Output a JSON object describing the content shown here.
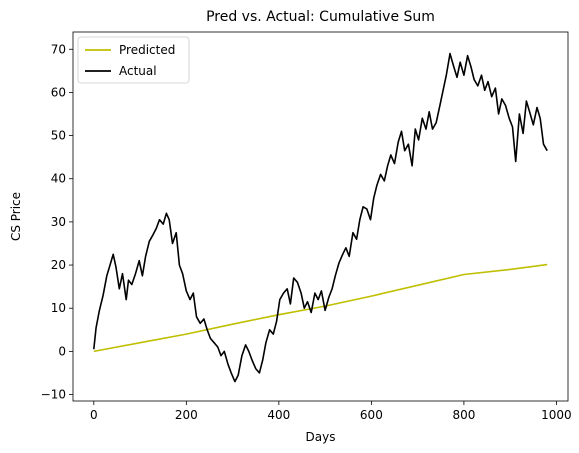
{
  "chart_data": {
    "type": "line",
    "title": "Pred vs. Actual: Cumulative Sum",
    "xlabel": "Days",
    "ylabel": "CS Price",
    "xlim": [
      -45,
      1025
    ],
    "ylim": [
      -11.5,
      74
    ],
    "xticks": [
      0,
      200,
      400,
      600,
      800,
      1000
    ],
    "yticks": [
      -10,
      0,
      10,
      20,
      30,
      40,
      50,
      60,
      70
    ],
    "grid": false,
    "legend_position": "top-left",
    "series": [
      {
        "name": "Predicted",
        "color": "#bfbf00",
        "x": [
          0,
          100,
          200,
          300,
          400,
          500,
          600,
          700,
          800,
          900,
          980
        ],
        "y": [
          0,
          2.0,
          4.0,
          6.3,
          8.5,
          10.5,
          12.8,
          15.3,
          17.8,
          19.0,
          20.1
        ]
      },
      {
        "name": "Actual",
        "color": "#000000",
        "x": [
          0,
          5,
          12,
          20,
          28,
          35,
          42,
          48,
          55,
          62,
          70,
          75,
          82,
          90,
          98,
          105,
          112,
          120,
          128,
          135,
          142,
          150,
          157,
          163,
          170,
          178,
          185,
          192,
          200,
          208,
          215,
          222,
          230,
          238,
          245,
          252,
          260,
          268,
          275,
          282,
          290,
          297,
          305,
          312,
          320,
          328,
          335,
          342,
          350,
          358,
          365,
          372,
          380,
          388,
          395,
          402,
          410,
          418,
          425,
          432,
          440,
          448,
          455,
          462,
          470,
          478,
          485,
          492,
          500,
          508,
          515,
          522,
          530,
          538,
          545,
          552,
          560,
          568,
          575,
          582,
          590,
          598,
          605,
          612,
          620,
          628,
          635,
          642,
          650,
          658,
          665,
          672,
          680,
          688,
          695,
          702,
          710,
          718,
          725,
          732,
          740,
          748,
          755,
          762,
          770,
          778,
          785,
          792,
          800,
          808,
          815,
          822,
          830,
          838,
          845,
          852,
          860,
          868,
          875,
          882,
          890,
          898,
          905,
          912,
          920,
          928,
          935,
          942,
          950,
          958,
          965,
          972,
          980
        ],
        "y": [
          0.5,
          5.5,
          9.5,
          13.0,
          17.5,
          20.0,
          22.5,
          19.5,
          14.5,
          18.0,
          12.0,
          16.5,
          15.5,
          18.0,
          21.0,
          17.5,
          22.0,
          25.5,
          27.0,
          28.5,
          30.5,
          29.5,
          32.0,
          30.5,
          25.0,
          27.5,
          20.0,
          18.0,
          14.0,
          12.0,
          13.5,
          8.0,
          6.5,
          7.5,
          5.0,
          3.0,
          2.0,
          1.0,
          -1.0,
          0.0,
          -3.0,
          -5.0,
          -7.0,
          -5.5,
          -1.0,
          1.5,
          0.0,
          -2.0,
          -4.0,
          -5.0,
          -2.0,
          2.0,
          5.0,
          4.0,
          7.0,
          12.0,
          13.5,
          14.5,
          11.0,
          17.0,
          16.0,
          13.5,
          10.0,
          11.5,
          9.0,
          13.5,
          12.0,
          14.0,
          9.5,
          12.5,
          14.5,
          17.5,
          20.5,
          22.5,
          24.0,
          22.0,
          27.5,
          26.0,
          30.5,
          33.5,
          33.0,
          30.5,
          35.5,
          38.5,
          41.0,
          39.5,
          43.0,
          45.5,
          43.5,
          48.5,
          51.0,
          46.5,
          48.0,
          43.0,
          51.5,
          49.0,
          54.0,
          51.5,
          55.5,
          51.5,
          53.0,
          57.0,
          60.5,
          64.0,
          69.0,
          66.0,
          63.5,
          67.0,
          64.0,
          68.5,
          66.0,
          63.0,
          61.5,
          64.0,
          60.5,
          62.5,
          59.0,
          61.0,
          55.0,
          58.5,
          57.0,
          54.0,
          52.0,
          44.0,
          55.0,
          50.5,
          58.0,
          55.5,
          52.5,
          56.5,
          54.0,
          48.0,
          46.5
        ]
      }
    ]
  }
}
